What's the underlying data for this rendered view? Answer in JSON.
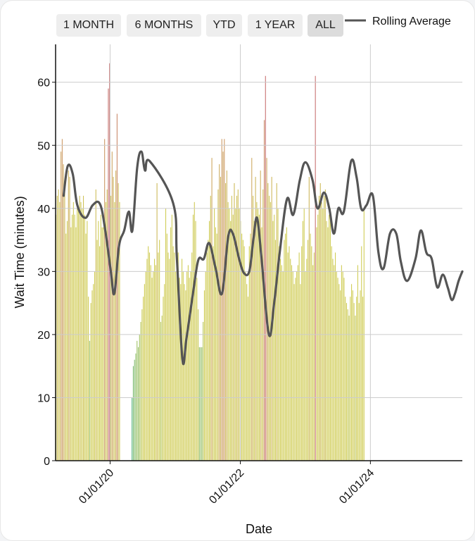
{
  "range_buttons": [
    {
      "label": "1 MONTH",
      "active": false
    },
    {
      "label": "6 MONTHS",
      "active": false
    },
    {
      "label": "YTD",
      "active": false
    },
    {
      "label": "1 YEAR",
      "active": false
    },
    {
      "label": "ALL",
      "active": true
    }
  ],
  "colors": {
    "rolling_line": "#555555",
    "bar_low": "#3aa76d",
    "bar_mid": "#c8c43a",
    "bar_high": "#c05a5a",
    "grid": "#cccccc"
  },
  "chart_data": {
    "type": "bar",
    "title": "",
    "xlabel": "Date",
    "ylabel": "Wait Time (minutes)",
    "ylim": [
      0,
      66
    ],
    "yticks": [
      0,
      10,
      20,
      30,
      40,
      50,
      60
    ],
    "xlim": [
      "2019-03-01",
      "2025-05-31"
    ],
    "xticks": [
      {
        "label": "01/01/20",
        "date": "2020-01-01"
      },
      {
        "label": "01/01/22",
        "date": "2022-01-01"
      },
      {
        "label": "01/01/24",
        "date": "2024-01-01"
      }
    ],
    "grid": true,
    "legend": {
      "position": "top-right",
      "entries": [
        "Rolling Average"
      ]
    },
    "bars": {
      "name": "Daily Wait Time",
      "start": "2019-03-01",
      "step_days": 7,
      "values": [
        39,
        42,
        43,
        41,
        49,
        51,
        47,
        44,
        36,
        38,
        46,
        45,
        37,
        39,
        41,
        39,
        37,
        40,
        40,
        42,
        41,
        40,
        42,
        39,
        36,
        38,
        26,
        19,
        25,
        27,
        28,
        30,
        43,
        35,
        38,
        34,
        39,
        37,
        37,
        51,
        41,
        43,
        59,
        63,
        42,
        49,
        45,
        41,
        46,
        55,
        44,
        41,
        null,
        null,
        null,
        null,
        null,
        null,
        null,
        null,
        null,
        10,
        15,
        16,
        17,
        19,
        18,
        20,
        22,
        24,
        26,
        28,
        30,
        32,
        34,
        33,
        31,
        29,
        30,
        32,
        31,
        44,
        33,
        35,
        22,
        23,
        26,
        28,
        40,
        36,
        33,
        32,
        37,
        39,
        34,
        33,
        30,
        31,
        33,
        29,
        28,
        32,
        30,
        28,
        27,
        30,
        31,
        29,
        30,
        33,
        39,
        41,
        38,
        29,
        24,
        18,
        18,
        18,
        22,
        27,
        30,
        33,
        35,
        38,
        42,
        48,
        34,
        40,
        37,
        36,
        43,
        47,
        45,
        51,
        49,
        51,
        44,
        46,
        41,
        40,
        38,
        42,
        39,
        44,
        40,
        42,
        43,
        40,
        38,
        36,
        35,
        34,
        30,
        28,
        26,
        34,
        36,
        48,
        42,
        38,
        45,
        41,
        40,
        39,
        46,
        37,
        43,
        54,
        61,
        48,
        44,
        42,
        41,
        45,
        38,
        39,
        35,
        44,
        40,
        34,
        32,
        31,
        30,
        35,
        36,
        37,
        33,
        34,
        32,
        31,
        30,
        28,
        29,
        30,
        31,
        33,
        28,
        34,
        38,
        40,
        30,
        32,
        35,
        45,
        36,
        34,
        31,
        33,
        61,
        37,
        39,
        42,
        44,
        41,
        40,
        42,
        43,
        38,
        37,
        39,
        40,
        34,
        32,
        31,
        33,
        30,
        29,
        28,
        27,
        31,
        30,
        29,
        26,
        25,
        24,
        23,
        26,
        28,
        27,
        25,
        23,
        26,
        31,
        25,
        27,
        34,
        26,
        40
      ]
    },
    "series": [
      {
        "name": "Rolling Average",
        "points": [
          [
            "2019-04-15",
            42.0
          ],
          [
            "2019-05-08",
            46.7
          ],
          [
            "2019-06-05",
            45.5
          ],
          [
            "2019-07-01",
            40.5
          ],
          [
            "2019-08-15",
            38.5
          ],
          [
            "2019-09-25",
            40.5
          ],
          [
            "2019-11-05",
            40.7
          ],
          [
            "2019-12-05",
            36.5
          ],
          [
            "2020-01-05",
            30.0
          ],
          [
            "2020-01-25",
            26.5
          ],
          [
            "2020-02-20",
            34.0
          ],
          [
            "2020-03-20",
            36.5
          ],
          [
            "2020-04-15",
            39.5
          ],
          [
            "2020-05-05",
            36.5
          ],
          [
            "2020-06-01",
            46.5
          ],
          [
            "2020-06-25",
            49.0
          ],
          [
            "2020-07-15",
            46.0
          ],
          [
            "2020-08-10",
            47.5
          ],
          [
            "2020-12-20",
            40.8
          ],
          [
            "2021-01-10",
            32.0
          ],
          [
            "2021-02-10",
            16.0
          ],
          [
            "2021-03-05",
            19.5
          ],
          [
            "2021-04-10",
            26.5
          ],
          [
            "2021-05-10",
            31.8
          ],
          [
            "2021-06-10",
            32.0
          ],
          [
            "2021-07-10",
            34.5
          ],
          [
            "2021-08-15",
            30.5
          ],
          [
            "2021-09-20",
            26.5
          ],
          [
            "2021-10-25",
            35.5
          ],
          [
            "2021-11-20",
            36.0
          ],
          [
            "2021-12-25",
            32.0
          ],
          [
            "2022-01-20",
            29.8
          ],
          [
            "2022-02-20",
            30.0
          ],
          [
            "2022-03-15",
            35.0
          ],
          [
            "2022-04-05",
            38.5
          ],
          [
            "2022-04-30",
            32.0
          ],
          [
            "2022-06-10",
            20.0
          ],
          [
            "2022-07-10",
            25.0
          ],
          [
            "2022-08-10",
            33.0
          ],
          [
            "2022-09-20",
            41.5
          ],
          [
            "2022-10-25",
            39.0
          ],
          [
            "2022-12-01",
            44.5
          ],
          [
            "2023-01-01",
            47.3
          ],
          [
            "2023-02-10",
            44.5
          ],
          [
            "2023-03-10",
            40.0
          ],
          [
            "2023-04-15",
            42.5
          ],
          [
            "2023-05-15",
            40.0
          ],
          [
            "2023-06-10",
            36.0
          ],
          [
            "2023-07-05",
            40.0
          ],
          [
            "2023-08-05",
            39.5
          ],
          [
            "2023-09-15",
            47.5
          ],
          [
            "2023-10-15",
            45.0
          ],
          [
            "2023-11-10",
            40.0
          ],
          [
            "2023-12-10",
            40.5
          ],
          [
            "2024-01-15",
            42.0
          ],
          [
            "2024-02-15",
            33.0
          ],
          [
            "2024-03-15",
            30.5
          ],
          [
            "2024-04-20",
            36.0
          ],
          [
            "2024-05-25",
            36.0
          ],
          [
            "2024-06-20",
            31.5
          ],
          [
            "2024-07-25",
            28.5
          ],
          [
            "2024-09-10",
            32.0
          ],
          [
            "2024-10-10",
            36.5
          ],
          [
            "2024-11-10",
            33.0
          ],
          [
            "2024-12-10",
            32.0
          ],
          [
            "2025-01-10",
            27.5
          ],
          [
            "2025-02-10",
            29.5
          ],
          [
            "2025-03-10",
            27.5
          ],
          [
            "2025-04-01",
            25.5
          ],
          [
            "2025-04-20",
            26.5
          ],
          [
            "2025-05-10",
            28.5
          ],
          [
            "2025-05-31",
            30.0
          ]
        ]
      }
    ]
  }
}
